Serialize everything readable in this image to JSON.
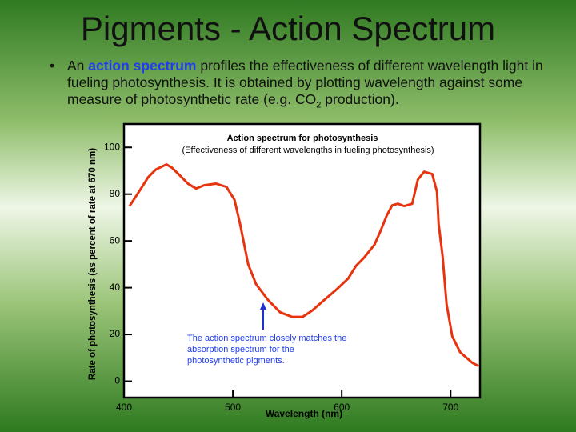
{
  "slide": {
    "title": "Pigments - Action Spectrum",
    "bullet": [
      "An ",
      "action spectrum",
      " profiles the effectiveness of different wavelength light in fueling photosynthesis. It is obtained by plotting wavelength against some measure of photosynthetic rate (e.g. CO",
      "2",
      " production)."
    ]
  },
  "chart_data": {
    "type": "line",
    "title": "Action spectrum for photosynthesis",
    "subtitle": "(Effectiveness of different wavelengths in fueling photosynthesis)",
    "x_label": "Wavelength (nm)",
    "y_label": "Rate of photosynthesis (as percent of rate at 670 nm)",
    "annotation": "The action spectrum closely matches the absorption spectrum for the photosynthetic pigments.",
    "xlim": [
      400,
      727
    ],
    "ylim": [
      -7,
      110
    ],
    "xticks": [
      400,
      500,
      600,
      700
    ],
    "yticks": [
      0,
      20,
      40,
      60,
      80,
      100
    ],
    "x": [
      405.1,
      414.7,
      422.1,
      429.4,
      439,
      444.1,
      451.5,
      458.8,
      466.2,
      473.5,
      484.6,
      494.1,
      501.5,
      506.6,
      514,
      521.3,
      532.4,
      543.4,
      554.4,
      564,
      572.8,
      583.8,
      594.9,
      605.9,
      613.2,
      620.6,
      630.1,
      635.3,
      641.2,
      646.3,
      651.5,
      657.4,
      664.7,
      669.9,
      675.7,
      683.1,
      687.5,
      689,
      692.6,
      696.3,
      701.5,
      708.8,
      719.9,
      725.7
    ],
    "series": [
      {
        "color": "#e8340e",
        "values": [
          74.9,
          81.7,
          87.2,
          90.6,
          92.7,
          91.3,
          87.9,
          84.5,
          82.4,
          83.8,
          84.5,
          83.1,
          77.6,
          67.3,
          50.1,
          41.5,
          34.7,
          29.5,
          27.5,
          27.5,
          30.2,
          34.7,
          39.1,
          43.9,
          49.4,
          52.9,
          58.4,
          63.9,
          70.7,
          75.2,
          75.9,
          74.9,
          75.9,
          86.2,
          89.6,
          88.6,
          81,
          67.3,
          53.6,
          33,
          19.2,
          12.4,
          7.9,
          6.5
        ]
      }
    ]
  }
}
